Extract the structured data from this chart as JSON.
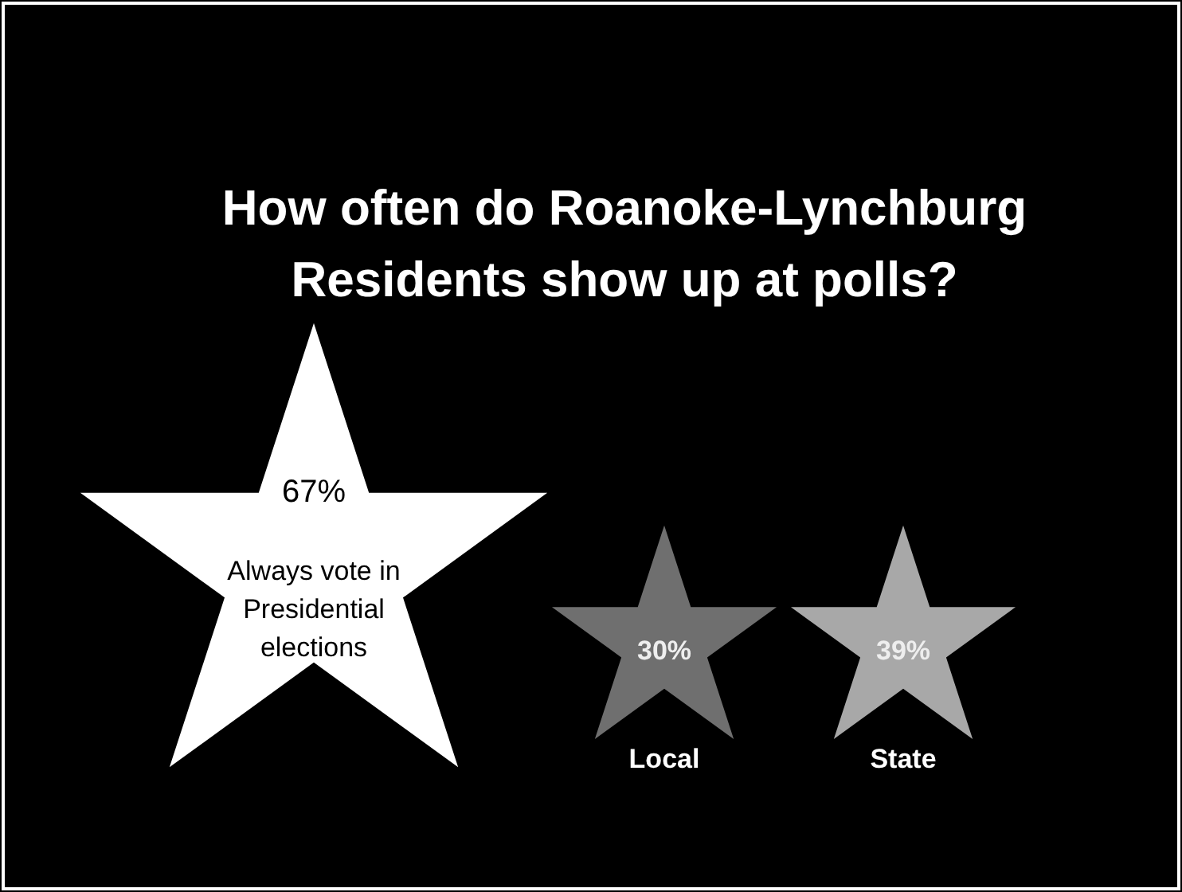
{
  "chart_data": {
    "type": "other",
    "title": "How often do Roanoke-Lynchburg Residents show up at polls?",
    "categories": [
      "Always vote in Presidential elections",
      "Local",
      "State"
    ],
    "values": [
      67,
      30,
      39
    ],
    "value_labels": [
      "67%",
      "30%",
      "39%"
    ],
    "colors": [
      "#ffffff",
      "#6f6f6f",
      "#a8a8a8"
    ]
  }
}
